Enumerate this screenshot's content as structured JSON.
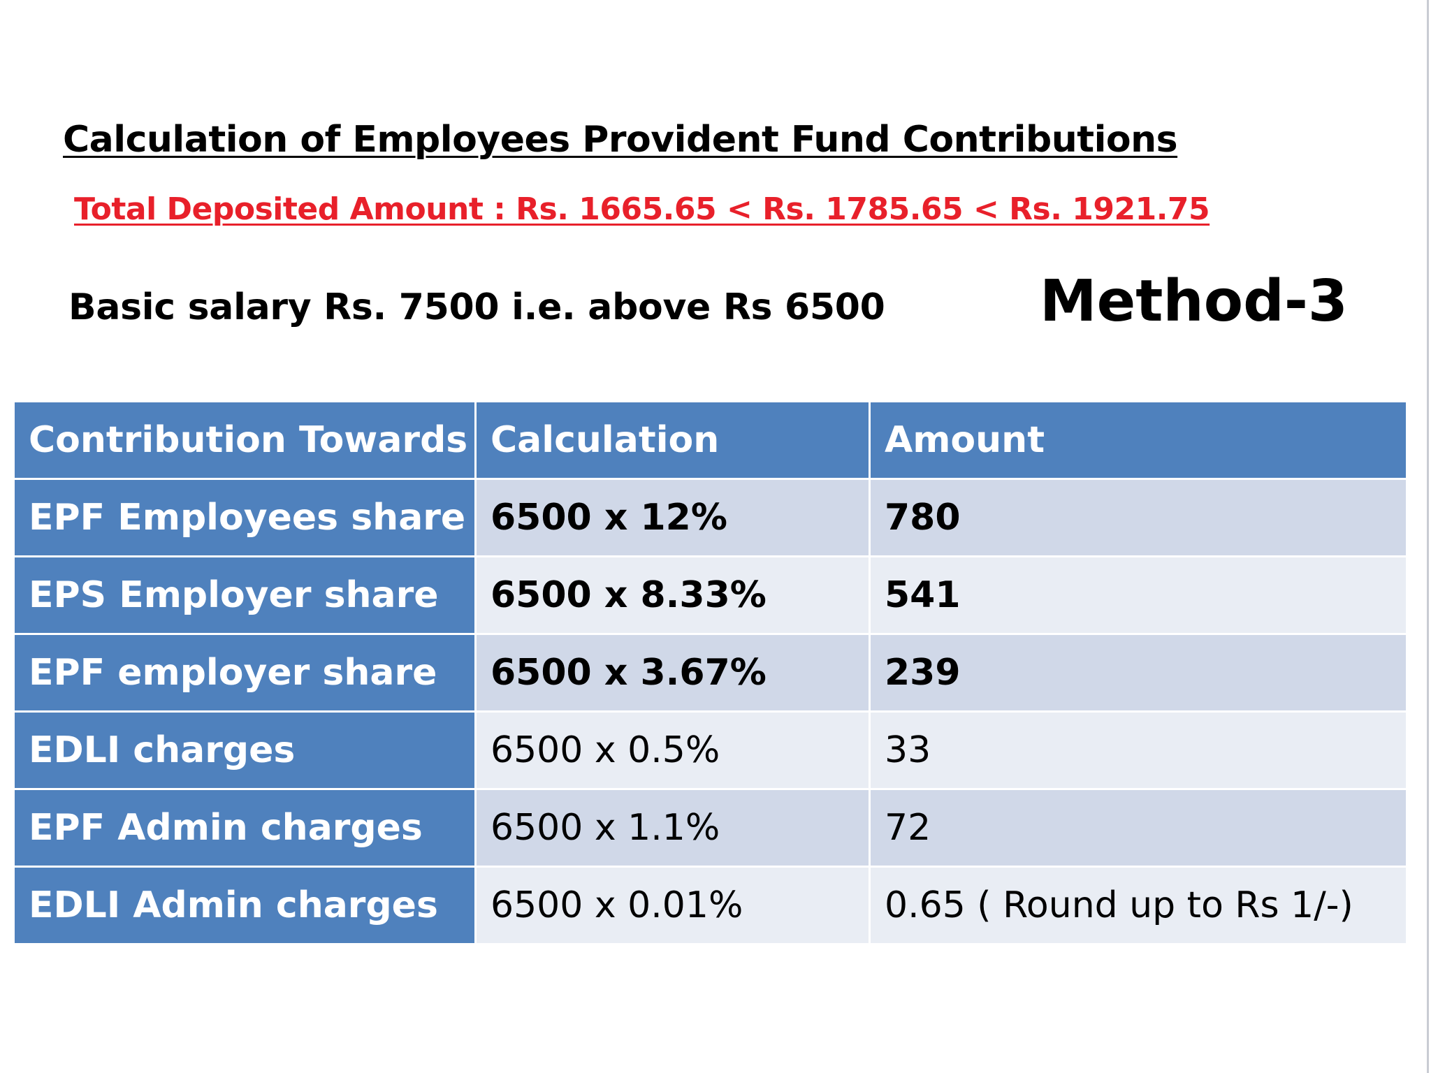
{
  "title": "Calculation of Employees Provident Fund Contributions",
  "subtitle": "Total Deposited Amount : Rs. 1665.65 < Rs. 1785.65 < Rs. 1921.75",
  "basic_salary": "Basic salary Rs. 7500 i.e. above Rs 6500",
  "method": "Method-3",
  "table": {
    "headers": [
      "Contribution Towards",
      "Calculation",
      "Amount"
    ],
    "rows": [
      {
        "label": "EPF Employees share",
        "calculation": "6500 x 12%",
        "amount": "780"
      },
      {
        "label": "EPS Employer share",
        "calculation": "6500 x 8.33%",
        "amount": "541"
      },
      {
        "label": "EPF employer share",
        "calculation": "6500 x 3.67%",
        "amount": "239"
      },
      {
        "label": "EDLI charges",
        "calculation": "6500 x 0.5%",
        "amount": "33"
      },
      {
        "label": "EPF Admin charges",
        "calculation": "6500 x 1.1%",
        "amount": "72"
      },
      {
        "label": "EDLI Admin charges",
        "calculation": "6500 x 0.01%",
        "amount": "0.65 ( Round up to Rs 1/-)"
      }
    ]
  },
  "colors": {
    "header_blue": "#4f81bd",
    "row_dark": "#d0d8e8",
    "row_light": "#e9edf4",
    "subtitle_red": "#e8202a"
  }
}
